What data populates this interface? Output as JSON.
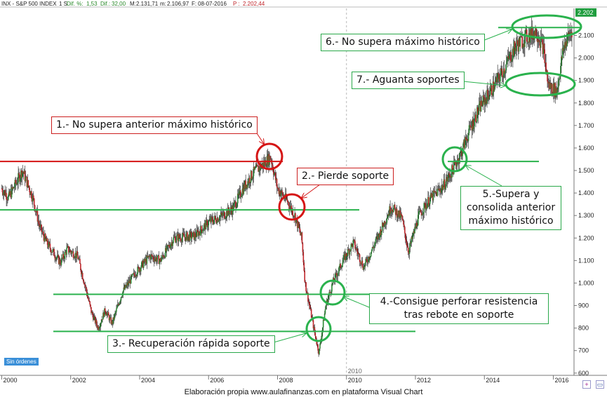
{
  "header": {
    "symbol": "INX - S&P 500 INDEX",
    "period": "1 S",
    "dif_pct_label": "Dif. %:",
    "dif_pct": "1,53",
    "dif_label": "Dif.:",
    "dif": "32,00",
    "max_label": "M:",
    "max": "2.131,71",
    "min_label": "m:",
    "min": "2.106,97",
    "date_label": "F:",
    "date": "08-07-2016",
    "price_label": "P :",
    "price": "2.202,44"
  },
  "badge": "Sin órdenes",
  "caption": "Elaboración propia www.aulafinanzas.com  en plataforma  Visual Chart",
  "colors": {
    "candle_up": "#2d8a36",
    "candle_down": "#c0252a",
    "resistance_red": "#d51515",
    "support_green": "#2ab24d",
    "current_price_box": "#1f9d3e"
  },
  "annotations": [
    {
      "id": "1",
      "text": "1.- No supera anterior máximo histórico",
      "style": "red"
    },
    {
      "id": "2",
      "text": "2.- Pierde soporte",
      "style": "red"
    },
    {
      "id": "3",
      "text": "3.- Recuperación rápida soporte",
      "style": "green"
    },
    {
      "id": "4",
      "text": "4.-Consigue perforar resistencia\ntras rebote en soporte",
      "style": "green"
    },
    {
      "id": "5",
      "text": "5.-Supera y\nconsolida anterior\nmáximo histórico",
      "style": "green"
    },
    {
      "id": "6",
      "text": "6.- No supera máximo histórico",
      "style": "green"
    },
    {
      "id": "7",
      "text": "7.- Aguanta soportes",
      "style": "green"
    }
  ],
  "chart_data": {
    "type": "candlestick",
    "title": "INX - S&P 500 INDEX",
    "x_ticks": [
      "2000",
      "2002",
      "2004",
      "2006",
      "2008",
      "2010",
      "2012",
      "2014",
      "2016"
    ],
    "y_ticks": [
      "600",
      "700",
      "800",
      "900",
      "1.000",
      "1.100",
      "1.200",
      "1.300",
      "1.400",
      "1.500",
      "1.600",
      "1.700",
      "1.800",
      "1.900",
      "2.000",
      "2.100"
    ],
    "ylim": [
      590,
      2220
    ],
    "xlim": [
      1999.95,
      2016.6
    ],
    "current_price_label": "2.202",
    "vertical_marker_year": 2010,
    "levels": [
      {
        "name": "resistencia",
        "value": 1540,
        "color": "red"
      },
      {
        "name": "soporte 1",
        "value": 1325,
        "color": "green"
      },
      {
        "name": "resistencia 2",
        "value": 950,
        "color": "green"
      },
      {
        "name": "soporte 2",
        "value": 785,
        "color": "green"
      },
      {
        "name": "máximo anterior",
        "value": 1540,
        "color": "green"
      },
      {
        "name": "máximo 2015",
        "value": 2135,
        "color": "green"
      }
    ],
    "path_anchors": [
      [
        2000.0,
        1420
      ],
      [
        2000.2,
        1380
      ],
      [
        2000.6,
        1500
      ],
      [
        2000.9,
        1380
      ],
      [
        2001.1,
        1250
      ],
      [
        2001.3,
        1180
      ],
      [
        2001.7,
        1090
      ],
      [
        2001.9,
        1150
      ],
      [
        2002.2,
        1120
      ],
      [
        2002.4,
        1000
      ],
      [
        2002.6,
        870
      ],
      [
        2002.8,
        800
      ],
      [
        2003.0,
        880
      ],
      [
        2003.2,
        820
      ],
      [
        2003.5,
        960
      ],
      [
        2003.9,
        1050
      ],
      [
        2004.3,
        1120
      ],
      [
        2004.6,
        1100
      ],
      [
        2005.0,
        1200
      ],
      [
        2005.6,
        1210
      ],
      [
        2006.0,
        1270
      ],
      [
        2006.4,
        1300
      ],
      [
        2006.7,
        1330
      ],
      [
        2007.0,
        1420
      ],
      [
        2007.3,
        1490
      ],
      [
        2007.6,
        1530
      ],
      [
        2007.8,
        1560
      ],
      [
        2008.0,
        1420
      ],
      [
        2008.3,
        1360
      ],
      [
        2008.5,
        1300
      ],
      [
        2008.7,
        1200
      ],
      [
        2008.8,
        1000
      ],
      [
        2008.95,
        880
      ],
      [
        2009.1,
        760
      ],
      [
        2009.2,
        690
      ],
      [
        2009.4,
        900
      ],
      [
        2009.6,
        1000
      ],
      [
        2009.9,
        1100
      ],
      [
        2010.2,
        1180
      ],
      [
        2010.5,
        1070
      ],
      [
        2010.9,
        1200
      ],
      [
        2011.3,
        1340
      ],
      [
        2011.6,
        1290
      ],
      [
        2011.8,
        1140
      ],
      [
        2012.1,
        1300
      ],
      [
        2012.4,
        1370
      ],
      [
        2012.8,
        1430
      ],
      [
        2013.0,
        1480
      ],
      [
        2013.3,
        1570
      ],
      [
        2013.6,
        1690
      ],
      [
        2013.9,
        1790
      ],
      [
        2014.3,
        1880
      ],
      [
        2014.6,
        1960
      ],
      [
        2014.9,
        2050
      ],
      [
        2015.2,
        2090
      ],
      [
        2015.5,
        2120
      ],
      [
        2015.7,
        2050
      ],
      [
        2015.85,
        1880
      ],
      [
        2016.1,
        1850
      ],
      [
        2016.3,
        2050
      ],
      [
        2016.55,
        2130
      ]
    ]
  }
}
